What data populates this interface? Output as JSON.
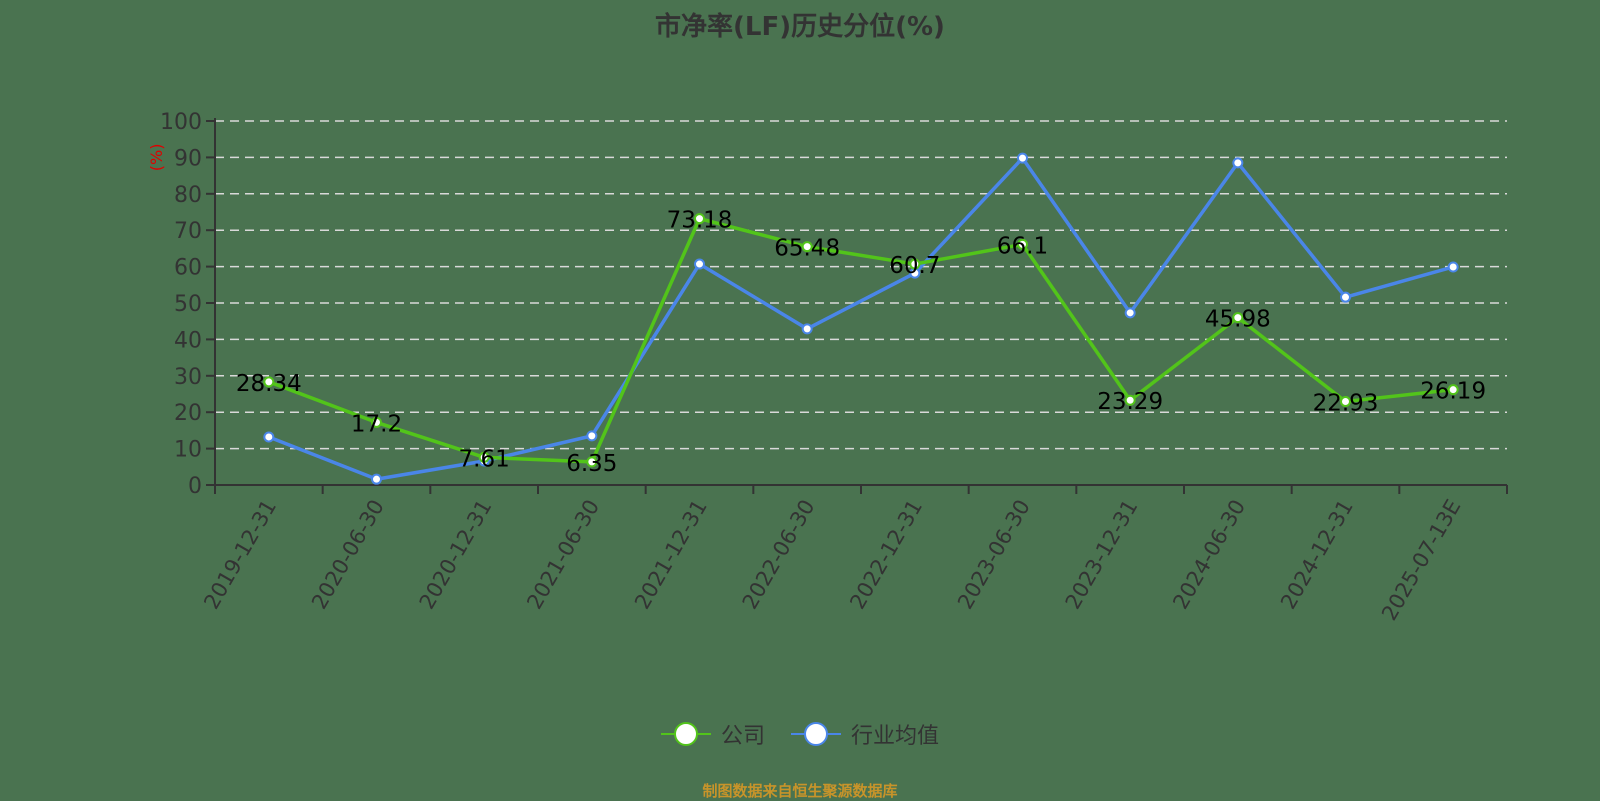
{
  "title": "市净率(LF)历史分位(%)",
  "footer": "制图数据来自恒生聚源数据库",
  "colors": {
    "background": "#4a7350",
    "company": "#52c41a",
    "industry": "#4a86e8",
    "axis": "#333333",
    "grid": "#d9d9d9",
    "ylabel": "#e00000",
    "footer": "#c8942a"
  },
  "legend": [
    {
      "label": "公司",
      "color": "#52c41a"
    },
    {
      "label": "行业均值",
      "color": "#4a86e8"
    }
  ],
  "chart_data": {
    "type": "line",
    "title": "市净率(LF)历史分位(%)",
    "xlabel": "",
    "ylabel": "(%)",
    "ylim": [
      0,
      100
    ],
    "yticks": [
      0,
      10,
      20,
      30,
      40,
      50,
      60,
      70,
      80,
      90,
      100
    ],
    "grid": true,
    "legend_position": "bottom",
    "categories": [
      "2019-12-31",
      "2020-06-30",
      "2020-12-31",
      "2021-06-30",
      "2021-12-31",
      "2022-06-30",
      "2022-12-31",
      "2023-06-30",
      "2023-12-31",
      "2024-06-30",
      "2024-12-31",
      "2025-07-13E"
    ],
    "series": [
      {
        "name": "公司",
        "values": [
          28.34,
          17.2,
          7.61,
          6.35,
          73.18,
          65.48,
          60.7,
          66.1,
          23.29,
          45.98,
          22.93,
          26.19
        ],
        "labeled": true
      },
      {
        "name": "行业均值",
        "values": [
          13.2,
          1.6,
          6.6,
          13.5,
          60.7,
          42.9,
          58.2,
          89.8,
          47.3,
          88.5,
          51.6,
          59.9
        ],
        "labeled": false
      }
    ]
  }
}
